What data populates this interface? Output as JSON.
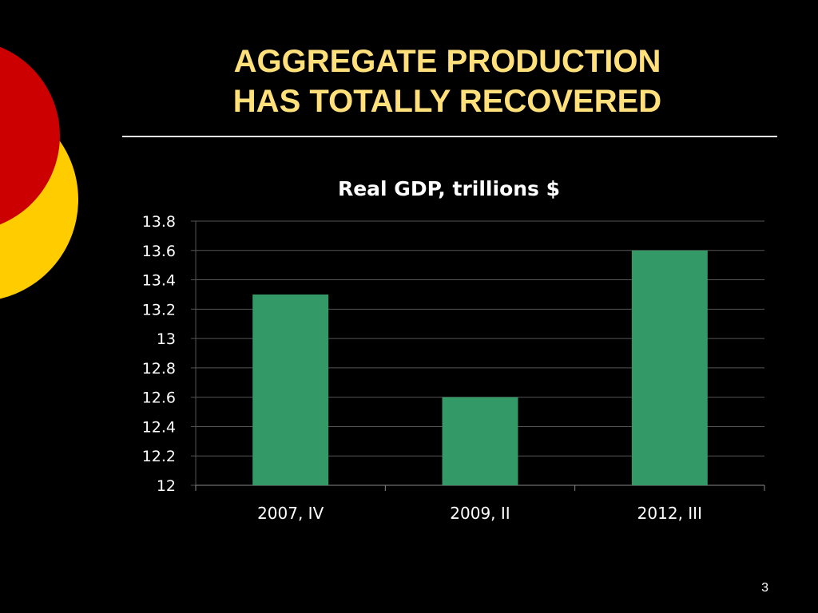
{
  "slide": {
    "title_line1": "AGGREGATE PRODUCTION",
    "title_line2": "HAS TOTALLY RECOVERED",
    "page_number": "3"
  },
  "colors": {
    "background": "#000000",
    "title": "#FFE07A",
    "bar": "#339966",
    "text": "#ffffff",
    "grid": "#555555",
    "deco_red": "#CC0000",
    "deco_yellow": "#FFCC00"
  },
  "chart_data": {
    "type": "bar",
    "title": "Real GDP, trillions $",
    "categories": [
      "2007, IV",
      "2009, II",
      "2012, III"
    ],
    "values": [
      13.3,
      12.6,
      13.6
    ],
    "xlabel": "",
    "ylabel": "",
    "ylim": [
      12,
      13.8
    ],
    "yticks": [
      "12",
      "12.2",
      "12.4",
      "12.6",
      "12.8",
      "13",
      "13.2",
      "13.4",
      "13.6",
      "13.8"
    ],
    "grid": true,
    "legend": "none"
  }
}
